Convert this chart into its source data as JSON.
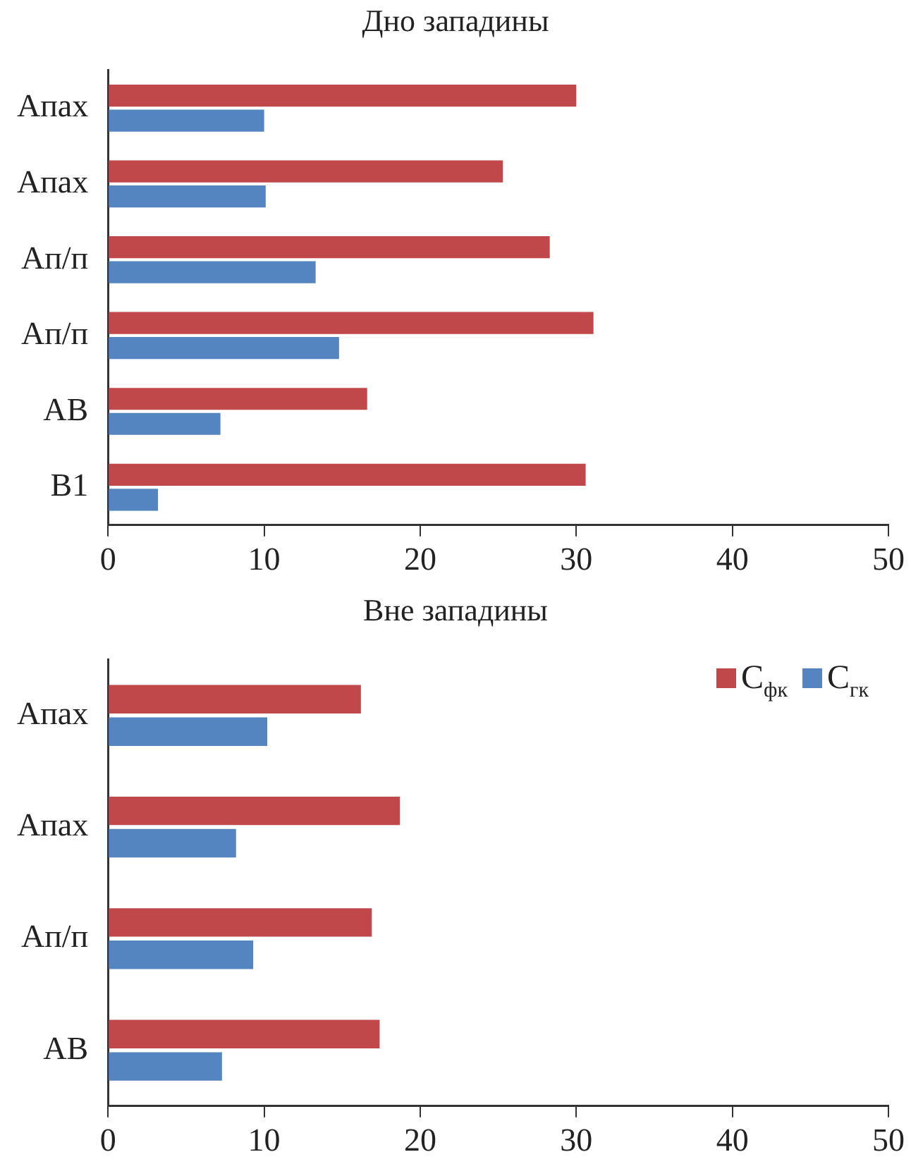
{
  "chart_data": [
    {
      "type": "bar",
      "orientation": "horizontal",
      "title": "Дно западины",
      "categories": [
        "Апах",
        "Апах",
        "Ап/п",
        "Ап/п",
        "АВ",
        "В1"
      ],
      "series": [
        {
          "color": "#c0474a",
          "values": [
            30.0,
            25.3,
            28.3,
            31.1,
            16.6,
            30.6
          ]
        },
        {
          "color": "#5485c1",
          "values": [
            10.0,
            10.1,
            13.3,
            14.8,
            7.2,
            3.2
          ]
        }
      ],
      "xlim": [
        0,
        50
      ],
      "xticks": [
        0,
        10,
        20,
        30,
        40,
        50
      ],
      "grid": false,
      "legend": false
    },
    {
      "type": "bar",
      "orientation": "horizontal",
      "title": "Вне западины",
      "categories": [
        "Апах",
        "Апах",
        "Ап/п",
        "АВ"
      ],
      "series": [
        {
          "name": "C$_{фк}$",
          "color": "#c0474a",
          "values": [
            16.2,
            18.7,
            16.9,
            17.4
          ]
        },
        {
          "name": "C$_{гк}$",
          "color": "#5485c1",
          "values": [
            10.2,
            8.2,
            9.3,
            7.3
          ]
        }
      ],
      "xlim": [
        0,
        50
      ],
      "xticks": [
        0,
        10,
        20,
        30,
        40,
        50
      ],
      "grid": false,
      "legend": "top right"
    }
  ]
}
